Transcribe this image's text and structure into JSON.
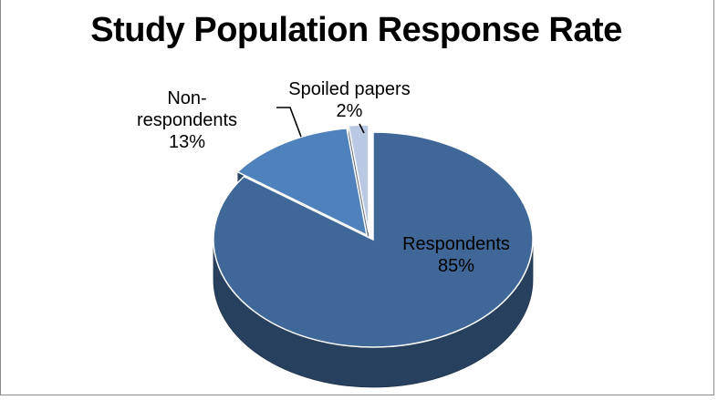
{
  "chart_data": {
    "type": "pie",
    "title": "Study Population Response Rate",
    "slices": [
      {
        "name": "Respondents",
        "value": 85,
        "pct_label": "85%",
        "color": "#3f6797"
      },
      {
        "name": "Non-respondents",
        "name_lines": [
          "Non-",
          "respondents"
        ],
        "value": 13,
        "pct_label": "13%",
        "color": "#4f81bd"
      },
      {
        "name": "Spoiled papers",
        "value": 2,
        "pct_label": "2%",
        "color": "#b9c9e3"
      }
    ],
    "style": "3d-exploded"
  }
}
